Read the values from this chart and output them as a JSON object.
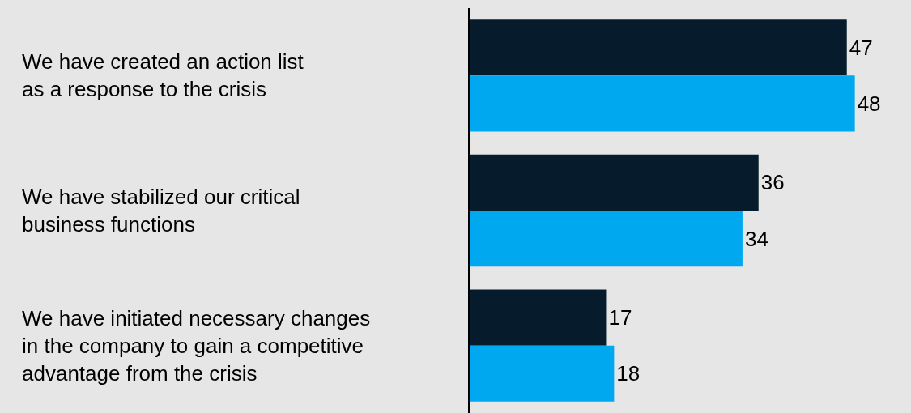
{
  "chart_data": {
    "type": "bar",
    "orientation": "horizontal",
    "categories": [
      "We have created an action list\nas a response to the crisis",
      "We have stabilized our critical\nbusiness functions",
      "We have initiated necessary changes\nin the company to gain a competitive\nadvantage from the crisis"
    ],
    "series": [
      {
        "color": "#061c2c",
        "values": [
          47,
          36,
          17
        ]
      },
      {
        "color": "#00a8f0",
        "values": [
          48,
          34,
          18
        ]
      }
    ],
    "xlim": [
      0,
      55
    ],
    "data_labels": true,
    "tick_labels": false,
    "grid": false
  }
}
